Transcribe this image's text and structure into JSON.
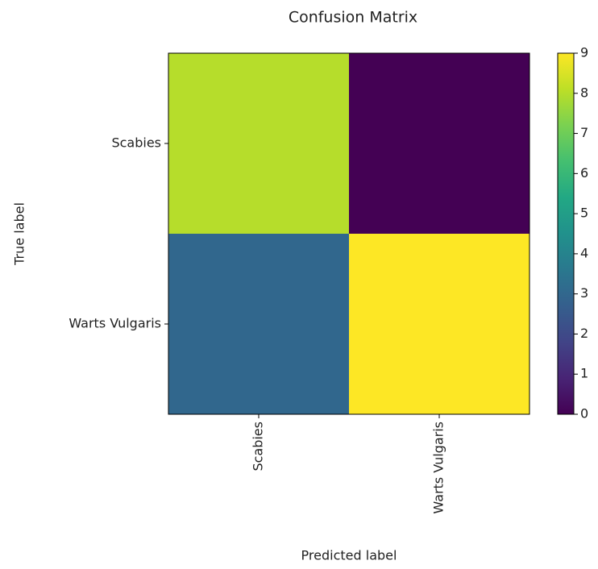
{
  "chart_data": {
    "type": "heatmap",
    "title": "Confusion Matrix",
    "x_label": "Predicted label",
    "y_label": "True label",
    "x_categories": [
      "Scabies",
      "Warts Vulgaris"
    ],
    "y_categories": [
      "Scabies",
      "Warts Vulgaris"
    ],
    "values": [
      [
        8,
        0
      ],
      [
        3,
        9
      ]
    ],
    "colormap": "viridis",
    "zlim": [
      0,
      9
    ],
    "zticks": [
      0,
      1,
      2,
      3,
      4,
      5,
      6,
      7,
      8,
      9
    ]
  }
}
